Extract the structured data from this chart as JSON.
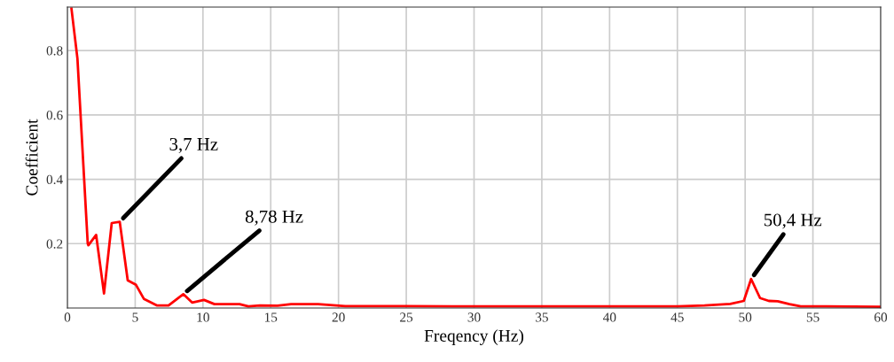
{
  "chart_data": {
    "type": "line",
    "xlabel": "Freqency (Hz)",
    "ylabel": "Coefficient",
    "xlim": [
      0,
      60
    ],
    "xticks": [
      0,
      5,
      10,
      15,
      20,
      25,
      30,
      35,
      40,
      45,
      50,
      55,
      60
    ],
    "ylim": [
      0,
      0.935
    ],
    "yticks": [
      0.2,
      0.4,
      0.6,
      0.8
    ],
    "grid": true,
    "marker": "none",
    "line_style": "solid",
    "series": [
      {
        "color": "#ff0000",
        "x": [
          0.3,
          0.74,
          1.5,
          1.55,
          2.12,
          2.7,
          3.27,
          3.86,
          4.45,
          5.06,
          5.65,
          6.59,
          7.46,
          8.55,
          9.2,
          10.08,
          10.85,
          12.7,
          13.35,
          14.2,
          15.5,
          16.5,
          18.5,
          20.5,
          25,
          30,
          35,
          40,
          45,
          47,
          48.9,
          49.9,
          50.44,
          51.1,
          51.75,
          52.4,
          53.27,
          54.1,
          56,
          60
        ],
        "values": [
          0.93,
          0.775,
          0.2,
          0.195,
          0.227,
          0.045,
          0.264,
          0.268,
          0.086,
          0.072,
          0.028,
          0.008,
          0.008,
          0.043,
          0.017,
          0.025,
          0.012,
          0.012,
          0.005,
          0.008,
          0.007,
          0.012,
          0.012,
          0.006,
          0.006,
          0.005,
          0.005,
          0.005,
          0.005,
          0.008,
          0.013,
          0.022,
          0.09,
          0.031,
          0.022,
          0.021,
          0.012,
          0.005,
          0.005,
          0.004
        ]
      }
    ],
    "annotations": [
      {
        "text": "3,7 Hz",
        "x": 3.86,
        "y": 0.268
      },
      {
        "text": "8,78 Hz",
        "x": 8.55,
        "y": 0.043
      },
      {
        "text": "50,4 Hz",
        "x": 50.44,
        "y": 0.09
      }
    ]
  }
}
